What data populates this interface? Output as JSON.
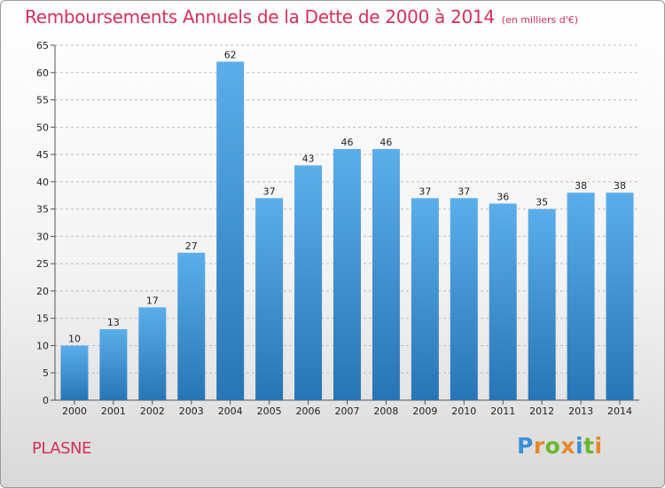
{
  "title": "Remboursements Annuels de la Dette de 2000 à 2014",
  "subtitle": "(en milliers d'€)",
  "commune": "PLASNE",
  "logo": {
    "text": "Proxiti",
    "letter_colors": [
      "#3a8fd6",
      "#e5892a",
      "#6bb52f",
      "#e5892a",
      "#3a8fd6",
      "#6bb52f",
      "#e5892a"
    ]
  },
  "colors": {
    "title": "#d2315a",
    "bar_top": "#5baeea",
    "bar_bottom": "#2775b6",
    "grid": "#bdbdbd"
  },
  "chart_data": {
    "type": "bar",
    "title": "Remboursements Annuels de la Dette de 2000 à 2014",
    "subtitle": "(en milliers d'€)",
    "xlabel": "",
    "ylabel": "",
    "categories": [
      "2000",
      "2001",
      "2002",
      "2003",
      "2004",
      "2005",
      "2006",
      "2007",
      "2008",
      "2009",
      "2010",
      "2011",
      "2012",
      "2013",
      "2014"
    ],
    "values": [
      10,
      13,
      17,
      27,
      62,
      37,
      43,
      46,
      46,
      37,
      37,
      36,
      35,
      38,
      38
    ],
    "ylim": [
      0,
      65
    ],
    "yticks": [
      0,
      5,
      10,
      15,
      20,
      25,
      30,
      35,
      40,
      45,
      50,
      55,
      60,
      65
    ],
    "grid": "horizontal dashed",
    "legend": "none"
  }
}
